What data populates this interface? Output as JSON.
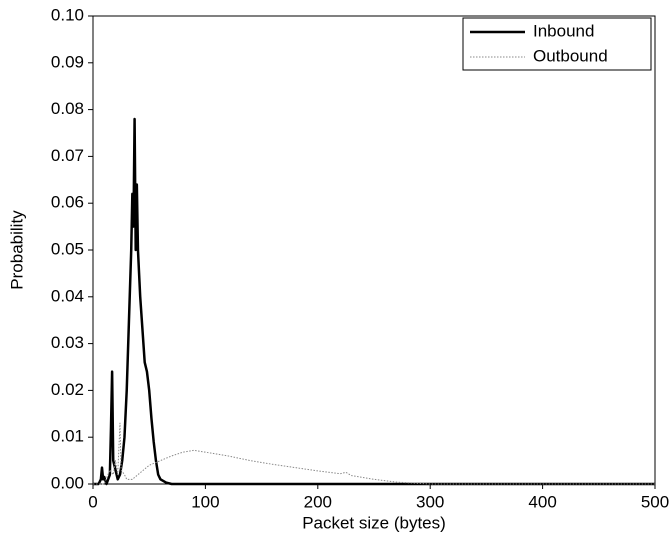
{
  "chart_data": {
    "type": "line",
    "xlabel": "Packet size (bytes)",
    "ylabel": "Probability",
    "xlim": [
      0,
      500
    ],
    "xticks": [
      0,
      100,
      200,
      300,
      400,
      500
    ],
    "ylim": [
      0,
      0.1
    ],
    "yticks": [
      {
        "value": 0,
        "label": "0.00"
      },
      {
        "value": 0.01,
        "label": "0.01"
      },
      {
        "value": 0.02,
        "label": "0.02"
      },
      {
        "value": 0.03,
        "label": "0.03"
      },
      {
        "value": 0.04,
        "label": "0.04"
      },
      {
        "value": 0.05,
        "label": "0.05"
      },
      {
        "value": 0.06,
        "label": "0.06"
      },
      {
        "value": 0.07,
        "label": "0.07"
      },
      {
        "value": 0.08,
        "label": "0.08"
      },
      {
        "value": 0.09,
        "label": "0.09"
      },
      {
        "value": 0.1,
        "label": "0.10"
      }
    ],
    "legend": "upper right",
    "series": [
      {
        "name": "Inbound",
        "color": "#000000",
        "style": "solid",
        "x": [
          0,
          5,
          7,
          8,
          9,
          10,
          12,
          15,
          16,
          17,
          18,
          20,
          22,
          24,
          26,
          28,
          30,
          32,
          34,
          35,
          36,
          37,
          38,
          39,
          40,
          41,
          42,
          44,
          46,
          48,
          50,
          52,
          54,
          56,
          58,
          60,
          65,
          70,
          100,
          200,
          300,
          400,
          500
        ],
        "values": [
          0,
          0,
          0.001,
          0.0035,
          0.001,
          0.0015,
          0,
          0.002,
          0.012,
          0.024,
          0.005,
          0.003,
          0.001,
          0.002,
          0.005,
          0.01,
          0.02,
          0.035,
          0.05,
          0.062,
          0.055,
          0.078,
          0.05,
          0.064,
          0.05,
          0.045,
          0.04,
          0.033,
          0.026,
          0.024,
          0.02,
          0.014,
          0.009,
          0.005,
          0.002,
          0.001,
          0.0003,
          0,
          0,
          0,
          0,
          0,
          0
        ]
      },
      {
        "name": "Outbound",
        "color": "#888888",
        "style": "dotted",
        "x": [
          0,
          10,
          15,
          18,
          20,
          22,
          24,
          25,
          28,
          30,
          35,
          40,
          50,
          60,
          70,
          80,
          90,
          100,
          120,
          140,
          160,
          180,
          200,
          220,
          225,
          230,
          250,
          270,
          300,
          400,
          500
        ],
        "values": [
          0,
          0,
          0.003,
          0.002,
          0.005,
          0.002,
          0.013,
          0.003,
          0.002,
          0.001,
          0.001,
          0.002,
          0.004,
          0.005,
          0.006,
          0.0068,
          0.0072,
          0.0068,
          0.006,
          0.005,
          0.0042,
          0.0035,
          0.0028,
          0.0022,
          0.0025,
          0.0018,
          0.001,
          0.0004,
          0,
          0,
          0
        ]
      }
    ]
  }
}
